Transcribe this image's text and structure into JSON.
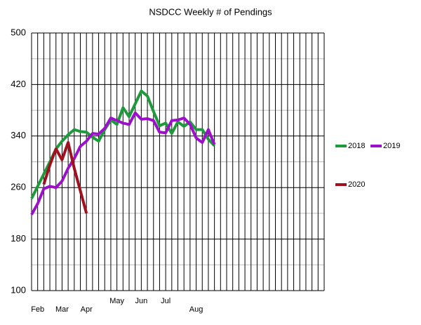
{
  "chart_data": {
    "type": "line",
    "title": "NSDCC Weekly # of Pendings",
    "categories": [
      null,
      "Feb",
      null,
      null,
      null,
      "Mar",
      null,
      null,
      null,
      "Apr",
      null,
      null,
      null,
      null,
      "May",
      null,
      null,
      null,
      "Jun",
      null,
      null,
      null,
      "Jul",
      null,
      null,
      null,
      null,
      "Aug",
      null,
      null,
      null,
      null,
      null,
      null,
      null,
      null,
      null,
      null,
      null,
      null,
      null,
      null,
      null,
      null,
      null,
      null,
      null,
      null
    ],
    "series": [
      {
        "name": "2018",
        "color": "#1e9a3c",
        "values": [
          243,
          262,
          281,
          300,
          320,
          332,
          342,
          350,
          347,
          346,
          338,
          332,
          350,
          365,
          358,
          384,
          370,
          390,
          410,
          402,
          378,
          356,
          360,
          344,
          362,
          355,
          362,
          350,
          350,
          335,
          325,
          null,
          null,
          null,
          null,
          null,
          null,
          null,
          null,
          null,
          null,
          null,
          null,
          null,
          null,
          null,
          null,
          null
        ]
      },
      {
        "name": "2019",
        "color": "#9b10c8",
        "values": [
          218,
          235,
          258,
          262,
          260,
          270,
          290,
          305,
          324,
          332,
          344,
          343,
          352,
          368,
          364,
          360,
          358,
          376,
          366,
          367,
          364,
          346,
          345,
          364,
          365,
          368,
          358,
          337,
          330,
          350,
          327,
          null,
          null,
          null,
          null,
          null,
          null,
          null,
          null,
          null,
          null,
          null,
          null,
          null,
          null,
          null,
          null,
          null
        ]
      },
      {
        "name": "2020",
        "color": "#a0101e",
        "values": [
          null,
          null,
          265,
          295,
          320,
          303,
          330,
          290,
          255,
          220,
          null,
          null,
          null,
          null,
          null,
          null,
          null,
          null,
          null,
          null,
          null,
          null,
          null,
          null,
          null,
          null,
          null,
          null,
          null,
          null,
          null,
          null,
          null,
          null,
          null,
          null,
          null,
          null,
          null,
          null,
          null,
          null,
          null,
          null,
          null,
          null,
          null,
          null
        ]
      }
    ],
    "ylim": [
      100,
      500
    ],
    "yticks": [
      100,
      180,
      260,
      340,
      420,
      500
    ],
    "minor_yticks": [
      140,
      220,
      300,
      380,
      460
    ],
    "grid": true,
    "legend": "right"
  }
}
